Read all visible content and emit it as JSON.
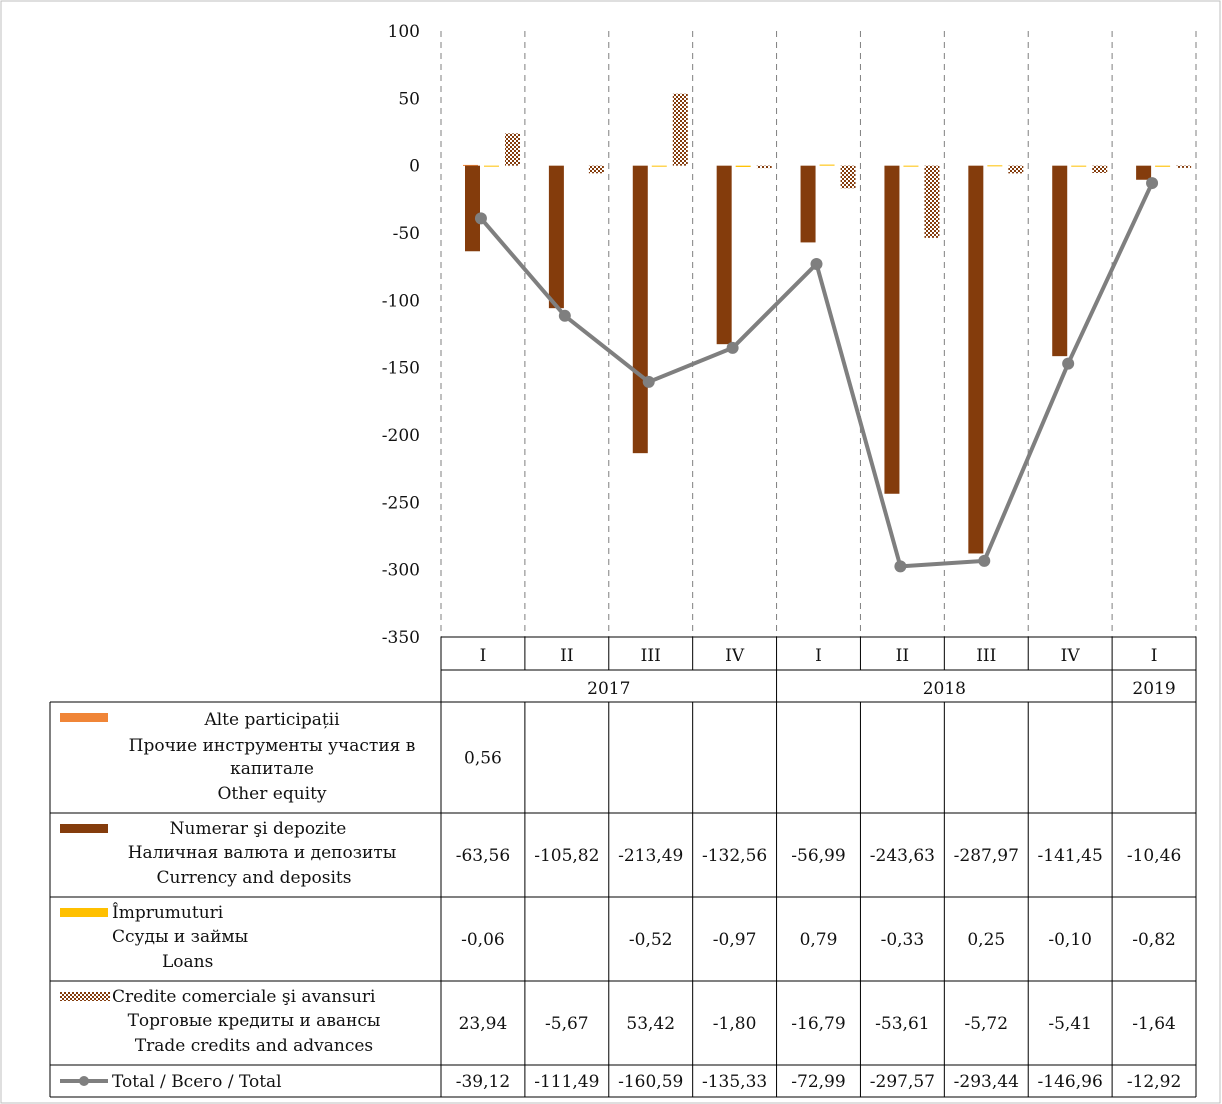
{
  "chart_data": {
    "type": "bar",
    "categories": [
      "I",
      "II",
      "III",
      "IV",
      "I",
      "II",
      "III",
      "IV",
      "I"
    ],
    "years": [
      {
        "label": "2017",
        "span": 4
      },
      {
        "label": "2018",
        "span": 4
      },
      {
        "label": "2019",
        "span": 1
      }
    ],
    "ylim": [
      -350,
      100
    ],
    "yticks": [
      "100",
      "50",
      "0",
      "-50",
      "-100",
      "-150",
      "-200",
      "-250",
      "-300",
      "-350"
    ],
    "series": [
      {
        "key": "other_equity",
        "kind": "bar",
        "legend_lines": [
          "Alte participații",
          "Прочие инструменты участия в капитале",
          "Other equity"
        ],
        "color": "#F08537",
        "values": [
          0.56,
          null,
          null,
          null,
          null,
          null,
          null,
          null,
          null
        ],
        "labels": [
          "0,56",
          "",
          "",
          "",
          "",
          "",
          "",
          "",
          ""
        ]
      },
      {
        "key": "currency_deposits",
        "kind": "bar",
        "legend_lines": [
          "Numerar şi depozite",
          "Наличная валюта и депозиты",
          "Currency and deposits"
        ],
        "color": "#843C0C",
        "values": [
          -63.56,
          -105.82,
          -213.49,
          -132.56,
          -56.99,
          -243.63,
          -287.97,
          -141.45,
          -10.46
        ],
        "labels": [
          "-63,56",
          "-105,82",
          "-213,49",
          "-132,56",
          "-56,99",
          "-243,63",
          "-287,97",
          "-141,45",
          "-10,46"
        ]
      },
      {
        "key": "loans",
        "kind": "bar",
        "legend_lines": [
          "Împrumuturi",
          "Ссуды и займы",
          "Loans"
        ],
        "color": "#FFC000",
        "values": [
          -0.06,
          null,
          -0.52,
          -0.97,
          0.79,
          -0.33,
          0.25,
          -0.1,
          -0.82
        ],
        "labels": [
          "-0,06",
          "",
          "-0,52",
          "-0,97",
          "0,79",
          "-0,33",
          "0,25",
          "-0,10",
          "-0,82"
        ]
      },
      {
        "key": "trade_credits",
        "kind": "bar",
        "pattern": "checker",
        "legend_lines": [
          "Credite comerciale şi avansuri",
          "Торговые кредиты и авансы",
          "Trade credits and advances"
        ],
        "color": "#843C0C",
        "values": [
          23.94,
          -5.67,
          53.42,
          -1.8,
          -16.79,
          -53.61,
          -5.72,
          -5.41,
          -1.64
        ],
        "labels": [
          "23,94",
          "-5,67",
          "53,42",
          "-1,80",
          "-16,79",
          "-53,61",
          "-5,72",
          "-5,41",
          "-1,64"
        ]
      },
      {
        "key": "total",
        "kind": "line",
        "legend_lines": [
          "Total / Всего / Total"
        ],
        "color": "#7F7F7F",
        "values": [
          -39.12,
          -111.49,
          -160.59,
          -135.33,
          -72.99,
          -297.57,
          -293.44,
          -146.96,
          -12.92
        ],
        "labels": [
          "-39,12",
          "-111,49",
          "-160,59",
          "-135,33",
          "-72,99",
          "-297,57",
          "-293,44",
          "-146,96",
          "-12,92"
        ]
      }
    ]
  }
}
